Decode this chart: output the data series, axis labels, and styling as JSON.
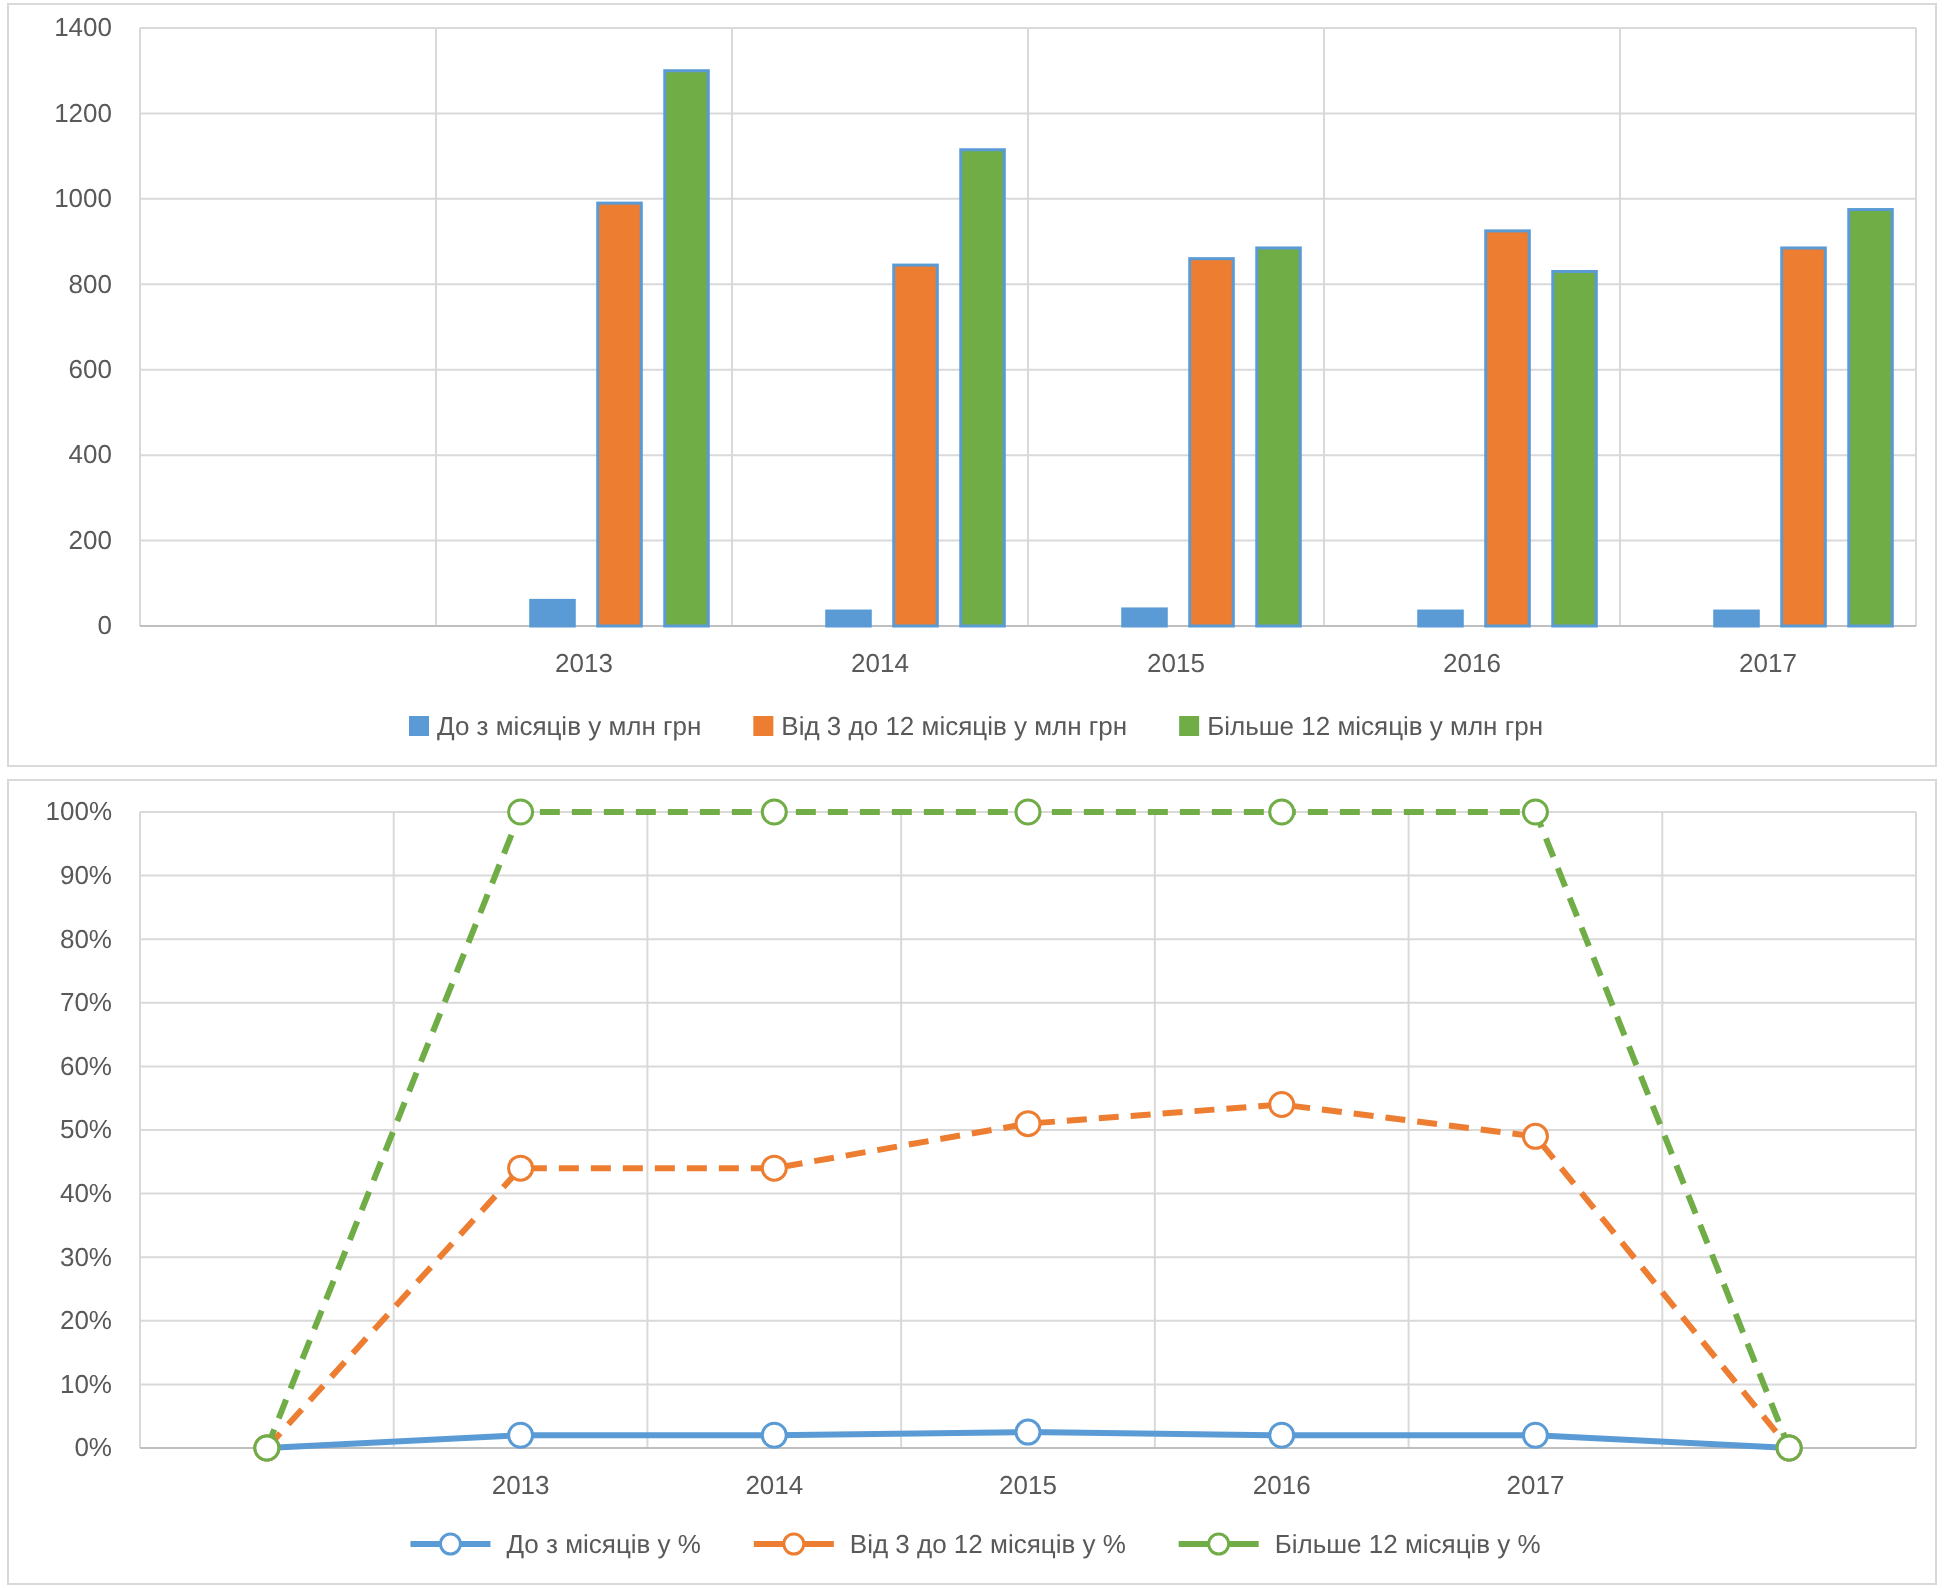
{
  "chart_data": [
    {
      "type": "bar",
      "categories": [
        null,
        "2013",
        "2014",
        "2015",
        "2016",
        "2017"
      ],
      "series": [
        {
          "name": "До з місяців у млн грн",
          "color": "#5b9bd5",
          "values": [
            null,
            60,
            35,
            40,
            35,
            35
          ]
        },
        {
          "name": "Від 3 до 12 місяців у млн грн",
          "color": "#ed7d31",
          "values": [
            null,
            990,
            845,
            860,
            925,
            885
          ]
        },
        {
          "name": "Більше 12 місяців у млн грн",
          "color": "#70ad47",
          "values": [
            null,
            1300,
            1115,
            885,
            830,
            975
          ]
        }
      ],
      "ylim": [
        0,
        1400
      ],
      "yticks": [
        0,
        200,
        400,
        600,
        800,
        1000,
        1200,
        1400
      ],
      "grid": true,
      "legend": "bottom"
    },
    {
      "type": "line",
      "categories": [
        null,
        "2013",
        "2014",
        "2015",
        "2016",
        "2017",
        null
      ],
      "series": [
        {
          "name": "До з місяців у %",
          "color": "#5b9bd5",
          "line_style": "solid",
          "values": [
            0,
            2,
            2,
            2.5,
            2,
            2,
            0
          ]
        },
        {
          "name": "Від 3 до 12 місяців у %",
          "color": "#ed7d31",
          "line_style": "dashed",
          "values": [
            0,
            44,
            44,
            51,
            54,
            49,
            0
          ]
        },
        {
          "name": "Більше 12 місяців у %",
          "color": "#70ad47",
          "line_style": "dashed",
          "values": [
            0,
            100,
            100,
            100,
            100,
            100,
            0
          ]
        }
      ],
      "ylim": [
        0,
        100
      ],
      "yticks": [
        {
          "value": 0,
          "label": "0%"
        },
        {
          "value": 10,
          "label": "10%"
        },
        {
          "value": 20,
          "label": "20%"
        },
        {
          "value": 30,
          "label": "30%"
        },
        {
          "value": 40,
          "label": "40%"
        },
        {
          "value": 50,
          "label": "50%"
        },
        {
          "value": 60,
          "label": "60%"
        },
        {
          "value": 70,
          "label": "70%"
        },
        {
          "value": 80,
          "label": "80%"
        },
        {
          "value": 90,
          "label": "90%"
        },
        {
          "value": 100,
          "label": "100%"
        }
      ],
      "grid": true,
      "legend": "bottom",
      "marker": "circle"
    }
  ]
}
